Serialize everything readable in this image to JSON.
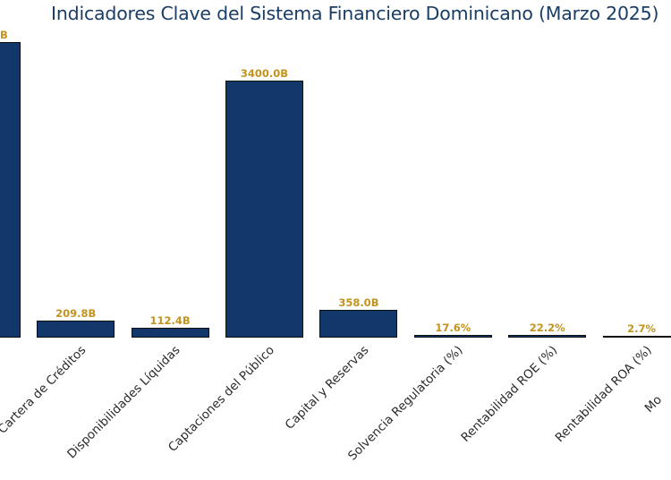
{
  "title": {
    "text": "Indicadores Clave del Sistema Financiero Dominicano (Marzo 2025)"
  },
  "colors": {
    "background": "#ffffff",
    "title": "#1a3d66",
    "bar_fill": "#12376b",
    "bar_edge": "#0d0d0d",
    "value_label": "#c2931d",
    "tick_label": "#2b2b2b"
  },
  "chart_data": {
    "type": "bar",
    "title": "Indicadores Clave del Sistema Financiero Dominicano (Marzo 2025)",
    "xlabel": "",
    "ylabel": "",
    "grid": false,
    "legend": false,
    "axes_visible": false,
    "ylim_estimate": [
      0,
      3950
    ],
    "view_note": "cropped view: leftmost bar clipped at left edge (only trailing 'B' of its value label visible), ninth category clipped at right edge (only 'Mo' visible)",
    "bars": [
      {
        "category": "",
        "clipped": "left",
        "value": 3903,
        "value_is_estimate": true,
        "value_label_visible": "B"
      },
      {
        "category": "Cartera de Créditos",
        "value": 209.8,
        "value_label": "209.8B"
      },
      {
        "category": "Disponibilidades Líquidas",
        "value": 112.4,
        "value_label": "112.4B"
      },
      {
        "category": "Captaciones del Público",
        "value": 3400.0,
        "value_label": "3400.0B"
      },
      {
        "category": "Capital y Reservas",
        "value": 358.0,
        "value_label": "358.0B"
      },
      {
        "category": "Solvencia Regulatoria (%)",
        "value": 17.6,
        "value_label": "17.6%"
      },
      {
        "category": "Rentabilidad ROE (%)",
        "value": 22.2,
        "value_label": "22.2%"
      },
      {
        "category": "Rentabilidad ROA (%)",
        "value": 2.7,
        "value_label": "2.7%"
      },
      {
        "category_visible": "Mo",
        "clipped": "right",
        "value": null,
        "value_label": ""
      }
    ]
  }
}
